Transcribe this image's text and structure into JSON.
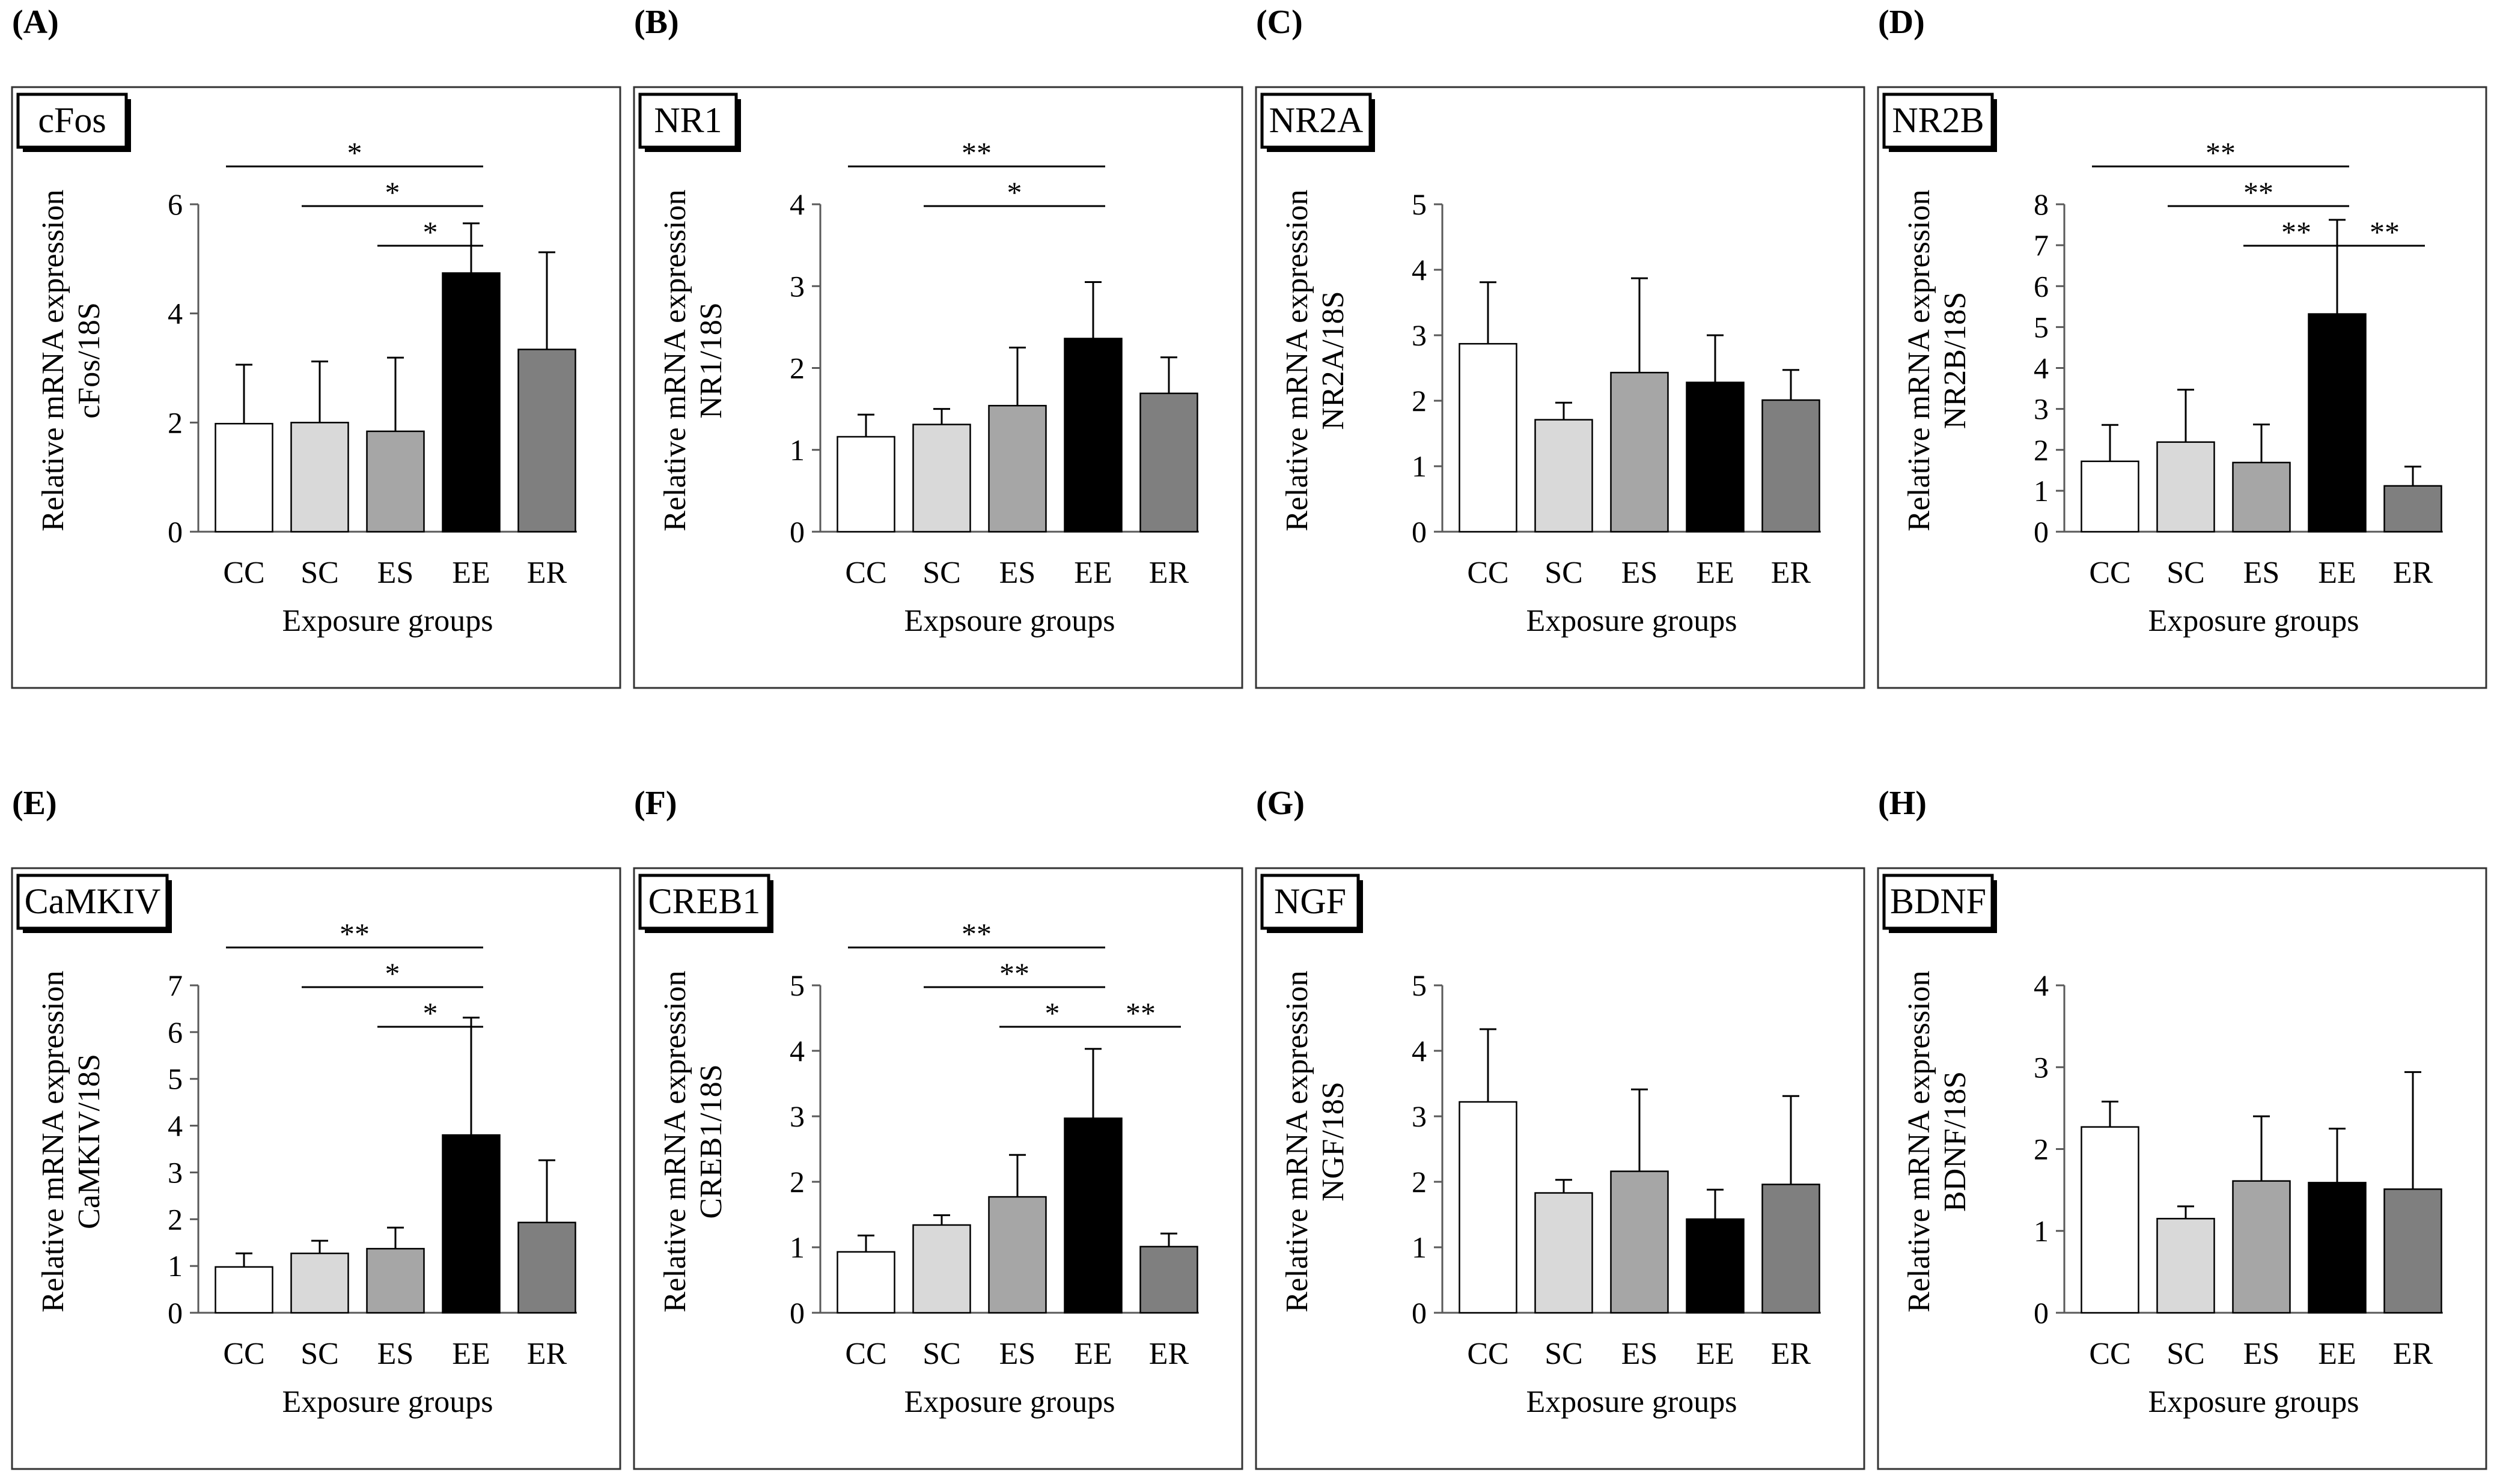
{
  "categories": [
    "CC",
    "SC",
    "ES",
    "EE",
    "ER"
  ],
  "bar_colors": [
    "#ffffff",
    "#d9d9d9",
    "#a6a6a6",
    "#000000",
    "#7f7f7f"
  ],
  "chart_data": [
    {
      "type": "bar",
      "panel": "(A)",
      "title": "cFos",
      "ylabel_line1": "Relative mRNA expression",
      "ylabel_line2": "cFos/18S",
      "xlabel": "Exposure groups",
      "categories": [
        "CC",
        "SC",
        "ES",
        "EE",
        "ER"
      ],
      "ylim": [
        0,
        6
      ],
      "yticks": [
        "0",
        "2",
        "4",
        "6"
      ],
      "values": [
        1.98,
        2.0,
        1.84,
        4.74,
        3.34
      ],
      "errors": [
        1.08,
        1.12,
        1.35,
        0.91,
        1.78
      ],
      "significance": [
        {
          "from": "CC",
          "to": "EE",
          "label": "*"
        },
        {
          "from": "SC",
          "to": "EE",
          "label": "*"
        },
        {
          "from": "ES",
          "to": "EE",
          "label": "*"
        }
      ]
    },
    {
      "type": "bar",
      "panel": "(B)",
      "title": "NR1",
      "ylabel_line1": "Relative mRNA expression",
      "ylabel_line2": "NR1/18S",
      "xlabel": "Expsoure groups",
      "categories": [
        "CC",
        "SC",
        "ES",
        "EE",
        "ER"
      ],
      "ylim": [
        0,
        4
      ],
      "yticks": [
        "0",
        "1",
        "2",
        "3",
        "4"
      ],
      "values": [
        1.16,
        1.31,
        1.54,
        2.36,
        1.69
      ],
      "errors": [
        0.27,
        0.19,
        0.71,
        0.69,
        0.44
      ],
      "significance": [
        {
          "from": "CC",
          "to": "EE",
          "label": "**"
        },
        {
          "from": "SC",
          "to": "EE",
          "label": "*"
        }
      ]
    },
    {
      "type": "bar",
      "panel": "(C)",
      "title": "NR2A",
      "ylabel_line1": "Relative mRNA expression",
      "ylabel_line2": "NR2A/18S",
      "xlabel": "Exposure groups",
      "categories": [
        "CC",
        "SC",
        "ES",
        "EE",
        "ER"
      ],
      "ylim": [
        0,
        5
      ],
      "yticks": [
        "0",
        "1",
        "2",
        "3",
        "4",
        "5"
      ],
      "values": [
        2.87,
        1.71,
        2.43,
        2.28,
        2.01
      ],
      "errors": [
        0.94,
        0.26,
        1.44,
        0.72,
        0.46
      ],
      "significance": []
    },
    {
      "type": "bar",
      "panel": "(D)",
      "title": "NR2B",
      "ylabel_line1": "Relative mRNA expression",
      "ylabel_line2": "NR2B/18S",
      "xlabel": "Exposure groups",
      "categories": [
        "CC",
        "SC",
        "ES",
        "EE",
        "ER"
      ],
      "ylim": [
        0,
        8
      ],
      "yticks": [
        "0",
        "1",
        "2",
        "3",
        "4",
        "5",
        "6",
        "7",
        "8"
      ],
      "values": [
        1.72,
        2.19,
        1.69,
        5.32,
        1.12
      ],
      "errors": [
        0.89,
        1.28,
        0.93,
        2.3,
        0.47
      ],
      "significance": [
        {
          "from": "CC",
          "to": "EE",
          "label": "**"
        },
        {
          "from": "SC",
          "to": "EE",
          "label": "**"
        },
        {
          "from": "ES",
          "to": "EE",
          "label": "**"
        },
        {
          "from": "EE",
          "to": "ER",
          "label": "**"
        }
      ]
    },
    {
      "type": "bar",
      "panel": "(E)",
      "title": "CaMKIV",
      "ylabel_line1": "Relative mRNA expression",
      "ylabel_line2": "CaMKIV/18S",
      "xlabel": "Exposure groups",
      "categories": [
        "CC",
        "SC",
        "ES",
        "EE",
        "ER"
      ],
      "ylim": [
        0,
        7
      ],
      "yticks": [
        "0",
        "1",
        "2",
        "3",
        "4",
        "5",
        "6",
        "7"
      ],
      "values": [
        0.98,
        1.27,
        1.37,
        3.8,
        1.93
      ],
      "errors": [
        0.29,
        0.27,
        0.45,
        2.51,
        1.33
      ],
      "significance": [
        {
          "from": "CC",
          "to": "EE",
          "label": "**"
        },
        {
          "from": "SC",
          "to": "EE",
          "label": "*"
        },
        {
          "from": "ES",
          "to": "EE",
          "label": "*"
        }
      ]
    },
    {
      "type": "bar",
      "panel": "(F)",
      "title": "CREB1",
      "ylabel_line1": "Relative mRNA expression",
      "ylabel_line2": "CREB1/18S",
      "xlabel": "Exposure groups",
      "categories": [
        "CC",
        "SC",
        "ES",
        "EE",
        "ER"
      ],
      "ylim": [
        0,
        5
      ],
      "yticks": [
        "0",
        "1",
        "2",
        "3",
        "4",
        "5"
      ],
      "values": [
        0.93,
        1.34,
        1.77,
        2.97,
        1.01
      ],
      "errors": [
        0.25,
        0.15,
        0.64,
        1.06,
        0.2
      ],
      "significance": [
        {
          "from": "CC",
          "to": "EE",
          "label": "**"
        },
        {
          "from": "SC",
          "to": "EE",
          "label": "**"
        },
        {
          "from": "ES",
          "to": "EE",
          "label": "*"
        },
        {
          "from": "EE",
          "to": "ER",
          "label": "**"
        }
      ]
    },
    {
      "type": "bar",
      "panel": "(G)",
      "title": "NGF",
      "ylabel_line1": "Relative mRNA expression",
      "ylabel_line2": "NGF/18S",
      "xlabel": "Exposure groups",
      "categories": [
        "CC",
        "SC",
        "ES",
        "EE",
        "ER"
      ],
      "ylim": [
        0,
        5
      ],
      "yticks": [
        "0",
        "1",
        "2",
        "3",
        "4",
        "5"
      ],
      "values": [
        3.22,
        1.83,
        2.16,
        1.43,
        1.96
      ],
      "errors": [
        1.11,
        0.2,
        1.25,
        0.45,
        1.35
      ],
      "significance": []
    },
    {
      "type": "bar",
      "panel": "(H)",
      "title": "BDNF",
      "ylabel_line1": "Relative mRNA expression",
      "ylabel_line2": "BDNF/18S",
      "xlabel": "Exposure groups",
      "categories": [
        "CC",
        "SC",
        "ES",
        "EE",
        "ER"
      ],
      "ylim": [
        0,
        4
      ],
      "yticks": [
        "0",
        "1",
        "2",
        "3",
        "4"
      ],
      "values": [
        2.27,
        1.15,
        1.61,
        1.59,
        1.51
      ],
      "errors": [
        0.31,
        0.15,
        0.79,
        0.66,
        1.43
      ],
      "significance": []
    }
  ]
}
